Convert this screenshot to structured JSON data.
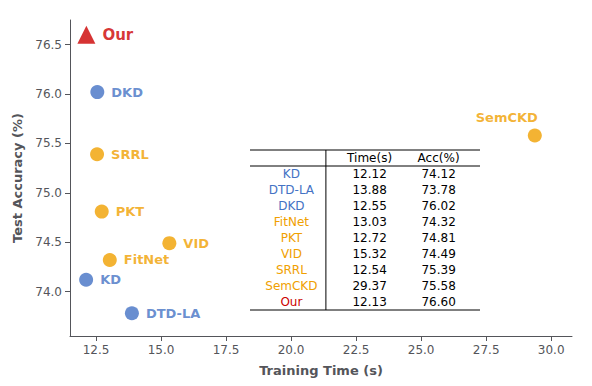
{
  "chart_data": {
    "type": "scatter",
    "xlabel": "Training Time (s)",
    "ylabel": "Test Accuracy (%)",
    "xlim": [
      11.5,
      30.8
    ],
    "ylim": [
      73.55,
      76.75
    ],
    "xticks": [
      12.5,
      {
        "value": 15.0,
        "label": "15.0"
      },
      17.5,
      {
        "value": 20.0,
        "label": "20.0"
      },
      22.5,
      {
        "value": 25.0,
        "label": "25.0"
      },
      27.5,
      {
        "value": 30.0,
        "label": "30.0"
      }
    ],
    "yticks": [
      {
        "value": 74.0,
        "label": "74.0"
      },
      74.5,
      {
        "value": 75.0,
        "label": "75.0"
      },
      75.5,
      {
        "value": 76.0,
        "label": "76.0"
      },
      76.5
    ],
    "grid": false,
    "series": [
      {
        "name": "Our",
        "color": "#cc0000",
        "marker": "triangle",
        "x": [
          12.13
        ],
        "values": [
          76.6
        ]
      },
      {
        "name": "DKD",
        "color": "#4472c4",
        "marker": "circle",
        "x": [
          12.55
        ],
        "values": [
          76.02
        ]
      },
      {
        "name": "SRRL",
        "color": "#f0a000",
        "marker": "circle",
        "x": [
          12.54
        ],
        "values": [
          75.39
        ]
      },
      {
        "name": "PKT",
        "color": "#f0a000",
        "marker": "circle",
        "x": [
          12.72
        ],
        "values": [
          74.81
        ]
      },
      {
        "name": "VID",
        "color": "#f0a000",
        "marker": "circle",
        "x": [
          15.32
        ],
        "values": [
          74.49
        ]
      },
      {
        "name": "FitNet",
        "color": "#f0a000",
        "marker": "circle",
        "x": [
          13.03
        ],
        "values": [
          74.32
        ]
      },
      {
        "name": "KD",
        "color": "#4472c4",
        "marker": "circle",
        "x": [
          12.12
        ],
        "values": [
          74.12
        ]
      },
      {
        "name": "DTD-LA",
        "color": "#4472c4",
        "marker": "circle",
        "x": [
          13.88
        ],
        "values": [
          73.78
        ]
      },
      {
        "name": "SemCKD",
        "color": "#f0a000",
        "marker": "circle",
        "x": [
          29.37
        ],
        "values": [
          75.58
        ]
      }
    ],
    "table": {
      "columns": [
        "Time(s)",
        "Acc(%)"
      ],
      "rows": [
        [
          "KD",
          "12.12",
          "74.12"
        ],
        [
          "DTD-LA",
          "13.88",
          "73.78"
        ],
        [
          "DKD",
          "12.55",
          "76.02"
        ],
        [
          "FitNet",
          "13.03",
          "74.32"
        ],
        [
          "PKT",
          "12.72",
          "74.81"
        ],
        [
          "VID",
          "15.32",
          "74.49"
        ],
        [
          "SRRL",
          "12.54",
          "75.39"
        ],
        [
          "SemCKD",
          "29.37",
          "75.58"
        ],
        [
          "Our",
          "12.13",
          "76.60"
        ]
      ],
      "colors": [
        "#4472c4",
        "#4472c4",
        "#4472c4",
        "#f0a000",
        "#f0a000",
        "#f0a000",
        "#f0a000",
        "#f0a000",
        "#cc0000"
      ]
    }
  }
}
